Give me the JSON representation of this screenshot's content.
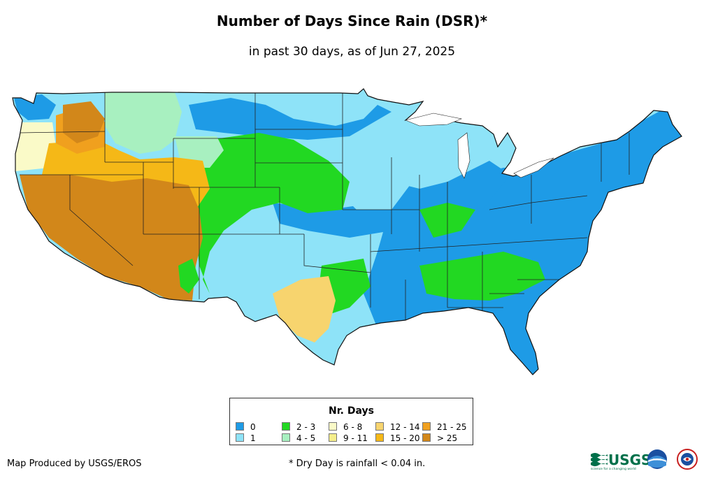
{
  "title": "Number of Days Since Rain (DSR)*",
  "subtitle": "in past 30 days, as of Jun 27, 2025",
  "legend": {
    "title": "Nr. Days",
    "items": [
      {
        "label": "0",
        "color": "#1e9be6"
      },
      {
        "label": "1",
        "color": "#8ee3f8"
      },
      {
        "label": "2 - 3",
        "color": "#22d822"
      },
      {
        "label": "4 - 5",
        "color": "#a8f0c0"
      },
      {
        "label": "6 - 8",
        "color": "#fafac8"
      },
      {
        "label": "9 - 11",
        "color": "#f5ee8c"
      },
      {
        "label": "12 - 14",
        "color": "#f7d46e"
      },
      {
        "label": "15 - 20",
        "color": "#f5b817"
      },
      {
        "label": "21 - 25",
        "color": "#f0a01e"
      },
      {
        "label": "> 25",
        "color": "#d2871a"
      }
    ]
  },
  "credit": "Map Produced by USGS/EROS",
  "footnote": "* Dry Day is rainfall < 0.04 in.",
  "logos": {
    "usgs": "USGS",
    "usgs_tagline": "science for a changing world",
    "noaa": "noaa",
    "nws_icon": "national-weather-service-icon"
  }
}
